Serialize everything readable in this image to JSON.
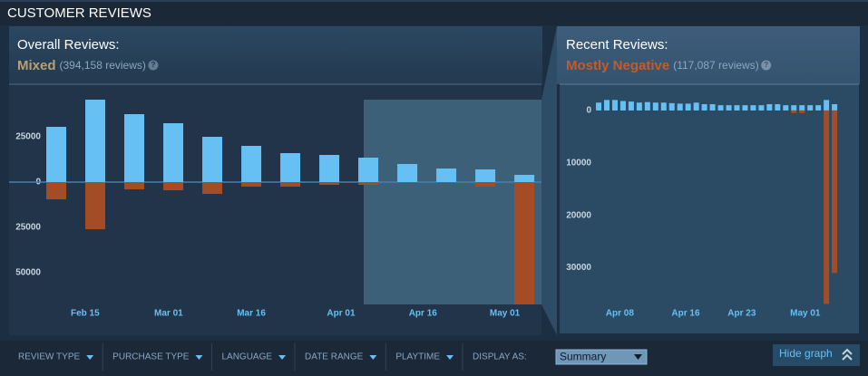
{
  "header": {
    "title": "CUSTOMER REVIEWS"
  },
  "overall": {
    "label": "Overall Reviews:",
    "summary": "Mixed",
    "count": "(394,158 reviews)",
    "help": "?"
  },
  "recent": {
    "label": "Recent Reviews:",
    "summary": "Mostly Negative",
    "count": "(117,087 reviews)",
    "help": "?"
  },
  "filters": [
    "REVIEW TYPE",
    "PURCHASE TYPE",
    "LANGUAGE",
    "DATE RANGE",
    "PLAYTIME"
  ],
  "display_as": {
    "label": "DISPLAY AS:",
    "value": "Summary"
  },
  "hide_graph": "Hide graph",
  "chart_data": [
    {
      "type": "bar",
      "x": [
        0,
        1,
        2,
        3,
        4,
        5,
        6,
        7,
        8,
        9,
        10,
        11,
        12
      ],
      "xlim": [
        -1.21,
        12.44
      ],
      "xticks": [
        {
          "value": 0.74,
          "label": "Feb 15"
        },
        {
          "value": 2.88,
          "label": "Mar 01"
        },
        {
          "value": 5.0,
          "label": "Mar 16"
        },
        {
          "value": 7.3,
          "label": "Apr 01"
        },
        {
          "value": 9.4,
          "label": "Apr 16"
        },
        {
          "value": 11.5,
          "label": "May 01"
        }
      ],
      "ylim": [
        -67500,
        54000
      ],
      "yticks": [
        25000,
        0,
        {
          "value": -25000,
          "label": "25000"
        },
        {
          "value": -50000,
          "label": "50000"
        }
      ],
      "series": [
        {
          "color": "#66c0f4",
          "values": [
            30500,
            45500,
            37500,
            32500,
            25000,
            20000,
            16000,
            15000,
            13500,
            10000,
            7500,
            7000,
            4000
          ]
        },
        {
          "color": "#a34c25",
          "values": [
            -9500,
            -26000,
            -4000,
            -4500,
            -6500,
            -2500,
            -2500,
            -1500,
            -1500,
            -500,
            -500,
            -2500,
            -67500
          ]
        }
      ]
    },
    {
      "type": "bar",
      "x": [
        0,
        1,
        2,
        3,
        4,
        5,
        6,
        7,
        8,
        9,
        10,
        11,
        12,
        13,
        14,
        15,
        16,
        17,
        18,
        19,
        20,
        21,
        22,
        23,
        24,
        25,
        26,
        27,
        28,
        29
      ],
      "xlim": [
        -4.8,
        32
      ],
      "xticks": [
        {
          "value": 2.6,
          "label": "Apr 08"
        },
        {
          "value": 10.7,
          "label": "Apr 16"
        },
        {
          "value": 17.6,
          "label": "Apr 23"
        },
        {
          "value": 25.4,
          "label": "May 01"
        }
      ],
      "ylim": [
        -37000,
        5000
      ],
      "yticks": [
        0,
        {
          "value": -10000,
          "label": "10000"
        },
        {
          "value": -20000,
          "label": "20000"
        },
        {
          "value": -30000,
          "label": "30000"
        }
      ],
      "series": [
        {
          "color": "#66c0f4",
          "values": [
            1500,
            2000,
            2000,
            1800,
            1700,
            1500,
            1600,
            1500,
            1500,
            1400,
            1300,
            1300,
            1500,
            1200,
            1200,
            1000,
            1000,
            1000,
            1000,
            1000,
            1000,
            1200,
            1200,
            1000,
            1000,
            1000,
            1000,
            1000,
            2000,
            1200
          ]
        },
        {
          "color": "#a34c25",
          "values": [
            0,
            0,
            0,
            0,
            0,
            0,
            0,
            0,
            0,
            0,
            0,
            0,
            0,
            0,
            0,
            0,
            0,
            0,
            0,
            0,
            0,
            0,
            0,
            0,
            -500,
            -500,
            0,
            0,
            -36900,
            -31000
          ]
        }
      ]
    }
  ]
}
